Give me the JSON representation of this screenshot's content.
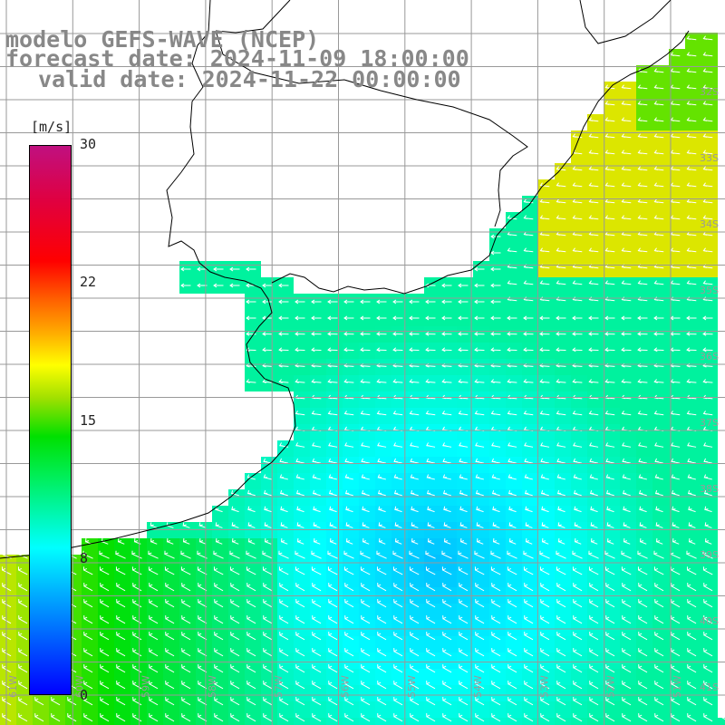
{
  "title": {
    "model": "modelo GEFS-WAVE (NCEP)",
    "forecast": "forecast date: 2024-11-09 18:00:00",
    "valid": "valid date: 2024-11-22 00:00:00"
  },
  "colorbar": {
    "unit": "[m/s]",
    "ticks": [
      "30",
      "22",
      "15",
      "8",
      "0"
    ],
    "tick_values": [
      30,
      22,
      15,
      8,
      0
    ],
    "range": [
      0,
      30
    ]
  },
  "map": {
    "lat_labels": [
      "32S",
      "33S",
      "34S",
      "35S",
      "36S",
      "37S",
      "38S",
      "39S",
      "40S",
      "41S"
    ],
    "lon_labels": [
      "61W",
      "60W",
      "59W",
      "58W",
      "57W",
      "56W",
      "55W",
      "54W",
      "53W",
      "52W",
      "51W"
    ],
    "wind_direction_general": "north-east to south-west",
    "colors": {
      "land": "#ffffff",
      "grid": "#999999",
      "coast": "#000000",
      "arrow": "#ffffff",
      "label": "#9a9a9a"
    }
  }
}
